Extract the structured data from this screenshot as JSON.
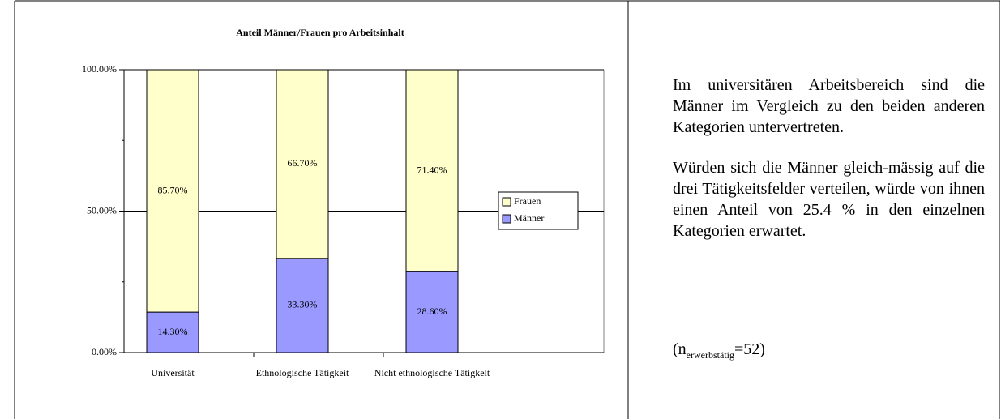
{
  "chart_data": {
    "type": "stacked_bar",
    "title": "Anteil Männer/Frauen pro Arbeitsinhalt",
    "categories": [
      "Universität",
      "Ethnologische Tätigkeit",
      "Nicht ethnologische Tätigkeit"
    ],
    "series": [
      {
        "name": "Männer",
        "color": "#9999ff",
        "values": [
          14.3,
          33.3,
          28.6
        ],
        "value_labels": [
          "14.30%",
          "33.30%",
          "28.60%"
        ]
      },
      {
        "name": "Frauen",
        "color": "#ffffcc",
        "values": [
          85.7,
          66.7,
          71.4
        ],
        "value_labels": [
          "85.70%",
          "66.70%",
          "71.40%"
        ]
      }
    ],
    "ylim": [
      0,
      100
    ],
    "yticks": [
      {
        "value": 0,
        "label": "0.00%"
      },
      {
        "value": 50,
        "label": "50.00%"
      },
      {
        "value": 100,
        "label": "100.00%"
      }
    ],
    "yminor_ticks": [
      25,
      75
    ],
    "grid": true,
    "legend": "right"
  },
  "text": {
    "paragraphs": [
      "Im universitären Arbeitsbereich sind die Männer im Vergleich zu den beiden anderen Kategorien untervertreten.",
      "Würden sich die Männer gleich-mässig auf die drei Tätigkeitsfelder verteilen, würde von ihnen einen Anteil von 25.4 % in den einzelnen Kategorien erwartet."
    ],
    "note": {
      "prefix": "(n",
      "sub": "erwerbstätig",
      "suffix": "=52)"
    }
  }
}
